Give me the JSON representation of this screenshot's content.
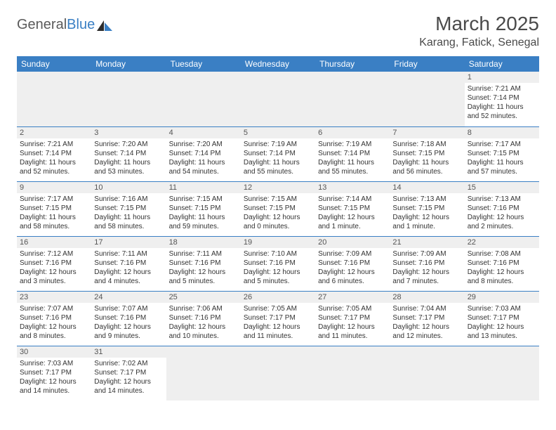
{
  "brand": {
    "part1": "General",
    "part2": "Blue"
  },
  "header": {
    "month_title": "March 2025",
    "location": "Karang, Fatick, Senegal"
  },
  "colors": {
    "header_bg": "#3a7fc4",
    "header_text": "#ffffff",
    "grid_line": "#3a7fc4",
    "daynum_bg": "#efefef",
    "body_text": "#333333"
  },
  "day_labels": [
    "Sunday",
    "Monday",
    "Tuesday",
    "Wednesday",
    "Thursday",
    "Friday",
    "Saturday"
  ],
  "weeks": [
    [
      null,
      null,
      null,
      null,
      null,
      null,
      {
        "n": "1",
        "sr": "Sunrise: 7:21 AM",
        "ss": "Sunset: 7:14 PM",
        "dl": "Daylight: 11 hours and 52 minutes."
      }
    ],
    [
      {
        "n": "2",
        "sr": "Sunrise: 7:21 AM",
        "ss": "Sunset: 7:14 PM",
        "dl": "Daylight: 11 hours and 52 minutes."
      },
      {
        "n": "3",
        "sr": "Sunrise: 7:20 AM",
        "ss": "Sunset: 7:14 PM",
        "dl": "Daylight: 11 hours and 53 minutes."
      },
      {
        "n": "4",
        "sr": "Sunrise: 7:20 AM",
        "ss": "Sunset: 7:14 PM",
        "dl": "Daylight: 11 hours and 54 minutes."
      },
      {
        "n": "5",
        "sr": "Sunrise: 7:19 AM",
        "ss": "Sunset: 7:14 PM",
        "dl": "Daylight: 11 hours and 55 minutes."
      },
      {
        "n": "6",
        "sr": "Sunrise: 7:19 AM",
        "ss": "Sunset: 7:14 PM",
        "dl": "Daylight: 11 hours and 55 minutes."
      },
      {
        "n": "7",
        "sr": "Sunrise: 7:18 AM",
        "ss": "Sunset: 7:15 PM",
        "dl": "Daylight: 11 hours and 56 minutes."
      },
      {
        "n": "8",
        "sr": "Sunrise: 7:17 AM",
        "ss": "Sunset: 7:15 PM",
        "dl": "Daylight: 11 hours and 57 minutes."
      }
    ],
    [
      {
        "n": "9",
        "sr": "Sunrise: 7:17 AM",
        "ss": "Sunset: 7:15 PM",
        "dl": "Daylight: 11 hours and 58 minutes."
      },
      {
        "n": "10",
        "sr": "Sunrise: 7:16 AM",
        "ss": "Sunset: 7:15 PM",
        "dl": "Daylight: 11 hours and 58 minutes."
      },
      {
        "n": "11",
        "sr": "Sunrise: 7:15 AM",
        "ss": "Sunset: 7:15 PM",
        "dl": "Daylight: 11 hours and 59 minutes."
      },
      {
        "n": "12",
        "sr": "Sunrise: 7:15 AM",
        "ss": "Sunset: 7:15 PM",
        "dl": "Daylight: 12 hours and 0 minutes."
      },
      {
        "n": "13",
        "sr": "Sunrise: 7:14 AM",
        "ss": "Sunset: 7:15 PM",
        "dl": "Daylight: 12 hours and 1 minute."
      },
      {
        "n": "14",
        "sr": "Sunrise: 7:13 AM",
        "ss": "Sunset: 7:15 PM",
        "dl": "Daylight: 12 hours and 1 minute."
      },
      {
        "n": "15",
        "sr": "Sunrise: 7:13 AM",
        "ss": "Sunset: 7:16 PM",
        "dl": "Daylight: 12 hours and 2 minutes."
      }
    ],
    [
      {
        "n": "16",
        "sr": "Sunrise: 7:12 AM",
        "ss": "Sunset: 7:16 PM",
        "dl": "Daylight: 12 hours and 3 minutes."
      },
      {
        "n": "17",
        "sr": "Sunrise: 7:11 AM",
        "ss": "Sunset: 7:16 PM",
        "dl": "Daylight: 12 hours and 4 minutes."
      },
      {
        "n": "18",
        "sr": "Sunrise: 7:11 AM",
        "ss": "Sunset: 7:16 PM",
        "dl": "Daylight: 12 hours and 5 minutes."
      },
      {
        "n": "19",
        "sr": "Sunrise: 7:10 AM",
        "ss": "Sunset: 7:16 PM",
        "dl": "Daylight: 12 hours and 5 minutes."
      },
      {
        "n": "20",
        "sr": "Sunrise: 7:09 AM",
        "ss": "Sunset: 7:16 PM",
        "dl": "Daylight: 12 hours and 6 minutes."
      },
      {
        "n": "21",
        "sr": "Sunrise: 7:09 AM",
        "ss": "Sunset: 7:16 PM",
        "dl": "Daylight: 12 hours and 7 minutes."
      },
      {
        "n": "22",
        "sr": "Sunrise: 7:08 AM",
        "ss": "Sunset: 7:16 PM",
        "dl": "Daylight: 12 hours and 8 minutes."
      }
    ],
    [
      {
        "n": "23",
        "sr": "Sunrise: 7:07 AM",
        "ss": "Sunset: 7:16 PM",
        "dl": "Daylight: 12 hours and 8 minutes."
      },
      {
        "n": "24",
        "sr": "Sunrise: 7:07 AM",
        "ss": "Sunset: 7:16 PM",
        "dl": "Daylight: 12 hours and 9 minutes."
      },
      {
        "n": "25",
        "sr": "Sunrise: 7:06 AM",
        "ss": "Sunset: 7:16 PM",
        "dl": "Daylight: 12 hours and 10 minutes."
      },
      {
        "n": "26",
        "sr": "Sunrise: 7:05 AM",
        "ss": "Sunset: 7:17 PM",
        "dl": "Daylight: 12 hours and 11 minutes."
      },
      {
        "n": "27",
        "sr": "Sunrise: 7:05 AM",
        "ss": "Sunset: 7:17 PM",
        "dl": "Daylight: 12 hours and 11 minutes."
      },
      {
        "n": "28",
        "sr": "Sunrise: 7:04 AM",
        "ss": "Sunset: 7:17 PM",
        "dl": "Daylight: 12 hours and 12 minutes."
      },
      {
        "n": "29",
        "sr": "Sunrise: 7:03 AM",
        "ss": "Sunset: 7:17 PM",
        "dl": "Daylight: 12 hours and 13 minutes."
      }
    ],
    [
      {
        "n": "30",
        "sr": "Sunrise: 7:03 AM",
        "ss": "Sunset: 7:17 PM",
        "dl": "Daylight: 12 hours and 14 minutes."
      },
      {
        "n": "31",
        "sr": "Sunrise: 7:02 AM",
        "ss": "Sunset: 7:17 PM",
        "dl": "Daylight: 12 hours and 14 minutes."
      },
      null,
      null,
      null,
      null,
      null
    ]
  ]
}
